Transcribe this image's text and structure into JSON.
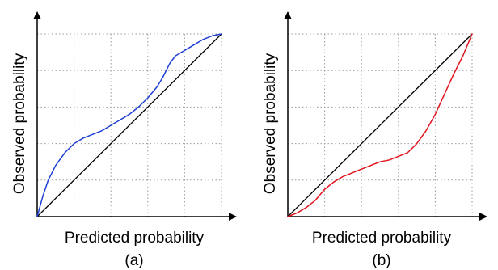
{
  "chart_data": [
    {
      "type": "line",
      "panel_label": "(a)",
      "xlabel": "Predicted probability",
      "ylabel": "Observed probability",
      "xlim": [
        0,
        1
      ],
      "ylim": [
        0,
        1
      ],
      "grid": true,
      "ticks_labeled": false,
      "series": [
        {
          "role": "reference",
          "color": "#000000",
          "points": [
            [
              0,
              0
            ],
            [
              1,
              1
            ]
          ]
        },
        {
          "role": "calibration",
          "color": "#1f3fd6",
          "points": [
            [
              0.0,
              0.0
            ],
            [
              0.03,
              0.11
            ],
            [
              0.06,
              0.2
            ],
            [
              0.1,
              0.28
            ],
            [
              0.15,
              0.35
            ],
            [
              0.2,
              0.4
            ],
            [
              0.25,
              0.43
            ],
            [
              0.3,
              0.45
            ],
            [
              0.35,
              0.47
            ],
            [
              0.4,
              0.5
            ],
            [
              0.45,
              0.53
            ],
            [
              0.5,
              0.56
            ],
            [
              0.55,
              0.6
            ],
            [
              0.6,
              0.65
            ],
            [
              0.65,
              0.71
            ],
            [
              0.68,
              0.76
            ],
            [
              0.7,
              0.8
            ],
            [
              0.72,
              0.84
            ],
            [
              0.75,
              0.88
            ],
            [
              0.8,
              0.91
            ],
            [
              0.85,
              0.94
            ],
            [
              0.9,
              0.97
            ],
            [
              0.95,
              0.99
            ],
            [
              1.0,
              1.0
            ]
          ]
        }
      ]
    },
    {
      "type": "line",
      "panel_label": "(b)",
      "xlabel": "Predicted probability",
      "ylabel": "Observed probability",
      "xlim": [
        0,
        1
      ],
      "ylim": [
        0,
        1
      ],
      "grid": true,
      "ticks_labeled": false,
      "series": [
        {
          "role": "reference",
          "color": "#000000",
          "points": [
            [
              0,
              0
            ],
            [
              1,
              1
            ]
          ]
        },
        {
          "role": "calibration",
          "color": "#e0141c",
          "points": [
            [
              0.0,
              0.0
            ],
            [
              0.05,
              0.02
            ],
            [
              0.1,
              0.05
            ],
            [
              0.15,
              0.09
            ],
            [
              0.2,
              0.15
            ],
            [
              0.25,
              0.19
            ],
            [
              0.3,
              0.22
            ],
            [
              0.35,
              0.24
            ],
            [
              0.4,
              0.26
            ],
            [
              0.45,
              0.28
            ],
            [
              0.5,
              0.3
            ],
            [
              0.55,
              0.31
            ],
            [
              0.6,
              0.33
            ],
            [
              0.65,
              0.35
            ],
            [
              0.7,
              0.4
            ],
            [
              0.75,
              0.47
            ],
            [
              0.8,
              0.56
            ],
            [
              0.85,
              0.67
            ],
            [
              0.9,
              0.78
            ],
            [
              0.95,
              0.88
            ],
            [
              1.0,
              1.0
            ]
          ]
        }
      ]
    }
  ]
}
